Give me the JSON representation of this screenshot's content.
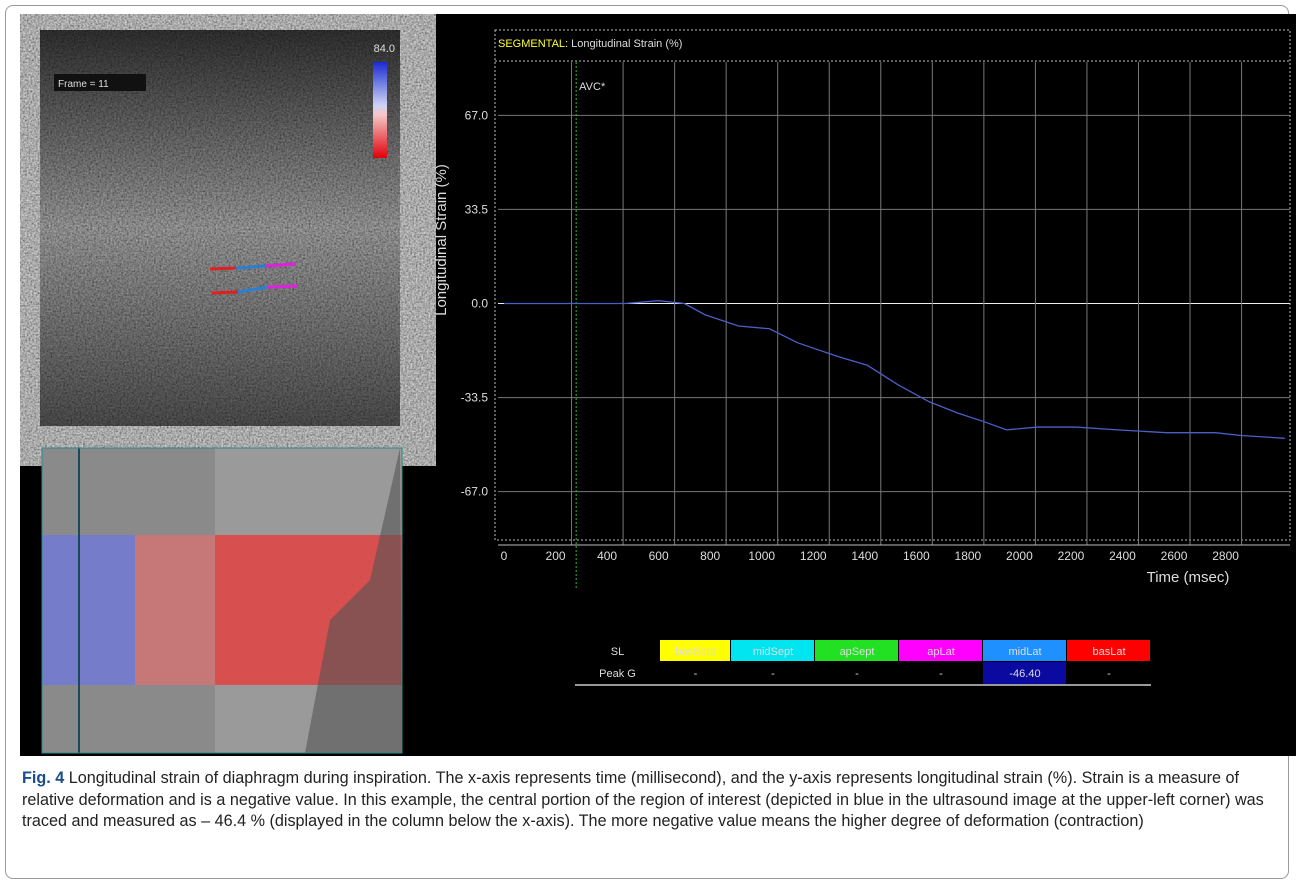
{
  "chart_data": {
    "type": "line",
    "title_lead": "SEGMENTAL:",
    "title": "Longitudinal Strain (%)",
    "xlabel": "Time (msec)",
    "ylabel": "Longitudinal Strain (%)",
    "x": [
      0,
      470,
      600,
      700,
      780,
      910,
      1030,
      1140,
      1300,
      1410,
      1530,
      1650,
      1760,
      1860,
      1950,
      2070,
      2220,
      2380,
      2570,
      2760,
      2860,
      3030
    ],
    "values": [
      0,
      0,
      1,
      0,
      -4,
      -8,
      -9,
      -14,
      -19,
      -22,
      -29,
      -35,
      -39,
      -42,
      -45,
      -44,
      -44,
      -45,
      -46,
      -46,
      -47,
      -48
    ],
    "color": "#4a5fc8",
    "xlim": [
      0,
      3050
    ],
    "xticks": [
      0,
      200,
      400,
      600,
      800,
      1000,
      1200,
      1400,
      1600,
      1800,
      2000,
      2200,
      2400,
      2600,
      2800
    ],
    "ylim": [
      -86,
      86
    ],
    "yticks": [
      {
        "value": 67,
        "label": "67.0"
      },
      33.5,
      {
        "value": 0,
        "label": "0.0"
      },
      -33.5,
      {
        "value": -67,
        "label": "-67.0"
      }
    ],
    "grid": true,
    "annotations": [
      {
        "text": "AVC*",
        "x": 280
      }
    ]
  },
  "ultrasound": {
    "frame": "Frame = 11",
    "scale_max": "84.0"
  },
  "table": {
    "header": [
      "SL",
      "basSept",
      "midSept",
      "apSept",
      "apLat",
      "midLat",
      "basLat"
    ],
    "colors": [
      "#000000",
      "#ffff00",
      "#00e5f0",
      "#22e022",
      "#ff00ff",
      "#1e90ff",
      "#ff0000"
    ],
    "rows": [
      [
        "Peak G",
        "-",
        "-",
        "-",
        "-",
        "-46.40",
        "-"
      ]
    ]
  },
  "caption": {
    "label": "Fig. 4",
    "text": "Longitudinal strain of diaphragm during inspiration. The x-axis represents time (millisecond), and the y-axis represents longitudinal strain (%). Strain is a measure of relative deformation and is a negative value. In this example, the central portion of the region of interest (depicted in blue in the ultrasound image at the upper-left corner) was traced and measured as – 46.4 % (displayed in the column below the x-axis). The more negative value means the higher degree of deformation (contraction)"
  }
}
